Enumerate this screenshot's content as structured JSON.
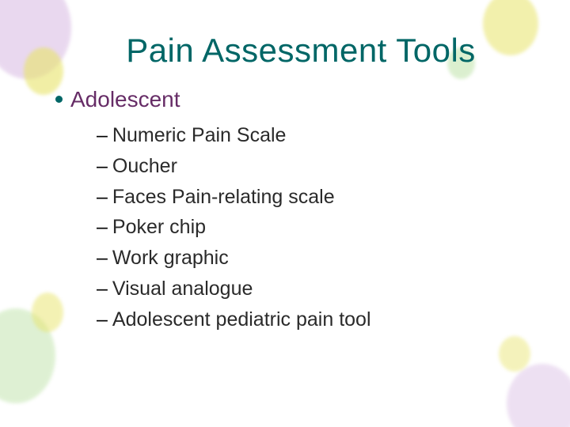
{
  "colors": {
    "title": "#006666",
    "bullet_l1_text": "#662c66",
    "bullet_l1_dot": "#006666",
    "bullet_l2_text": "#2a2a2a"
  },
  "typography": {
    "title_fontsize": 42,
    "l1_fontsize": 28,
    "l2_fontsize": 25,
    "font_family": "Verdana"
  },
  "slide": {
    "title": "Pain Assessment Tools",
    "l1": {
      "label": "Adolescent",
      "items": [
        "Numeric Pain Scale",
        "Oucher",
        "Faces Pain-relating scale",
        "Poker chip",
        "Work graphic",
        "Visual analogue",
        "Adolescent pediatric pain tool"
      ]
    }
  }
}
